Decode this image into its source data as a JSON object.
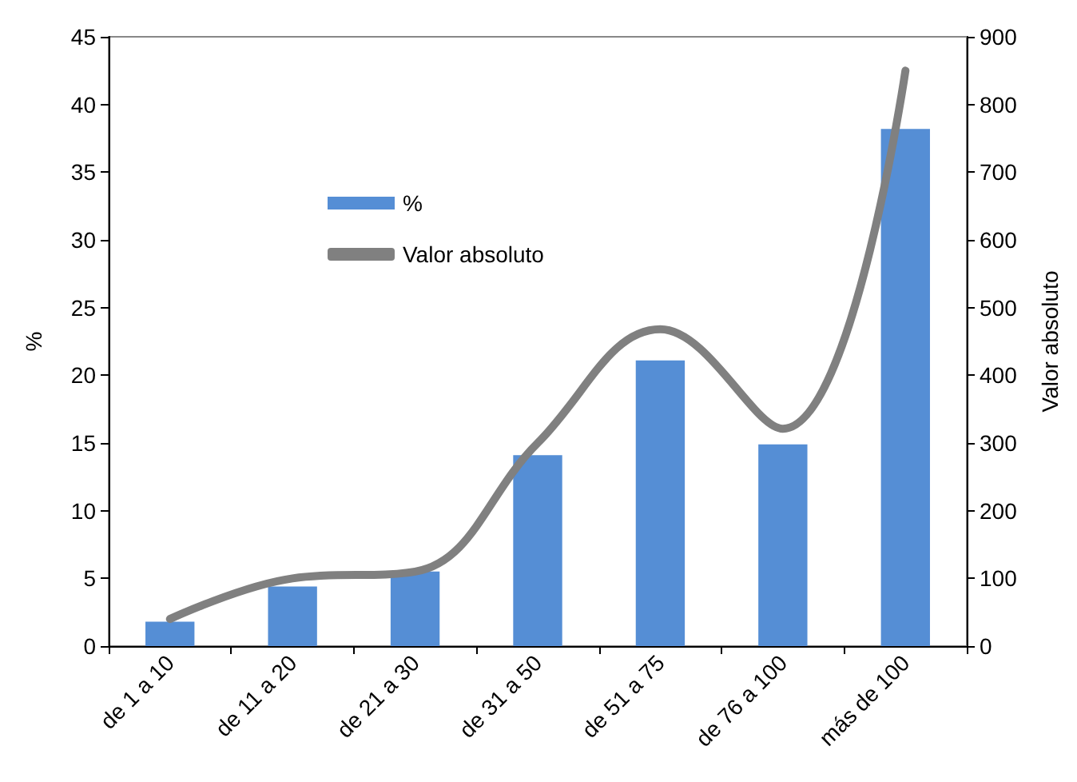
{
  "chart_data": {
    "type": "bar",
    "categories": [
      "de 1 a 10",
      "de 11 a 20",
      "de 21 a 30",
      "de 31 a 50",
      "de 51 a 75",
      "de 76 a 100",
      "más de 100"
    ],
    "ylabel": "%",
    "y2label": "Valor absoluto",
    "series": [
      {
        "name": "%",
        "color": "#558ed5",
        "values": [
          1.8,
          4.4,
          5.5,
          14.1,
          21.1,
          14.9,
          38.2
        ]
      },
      {
        "name": "Valor absoluto",
        "type": "line",
        "axis": "y2",
        "color": "#808080",
        "values": [
          40,
          100,
          110,
          300,
          468,
          321,
          850
        ]
      }
    ],
    "ylim": [
      0,
      45
    ],
    "yticks": [
      0,
      5,
      10,
      15,
      20,
      25,
      30,
      35,
      40,
      45
    ],
    "y2lim": [
      0,
      900
    ],
    "y2ticks": [
      0,
      100,
      200,
      300,
      400,
      500,
      600,
      700,
      800,
      900
    ],
    "grid": false,
    "legend": "top left",
    "marker": "none"
  }
}
